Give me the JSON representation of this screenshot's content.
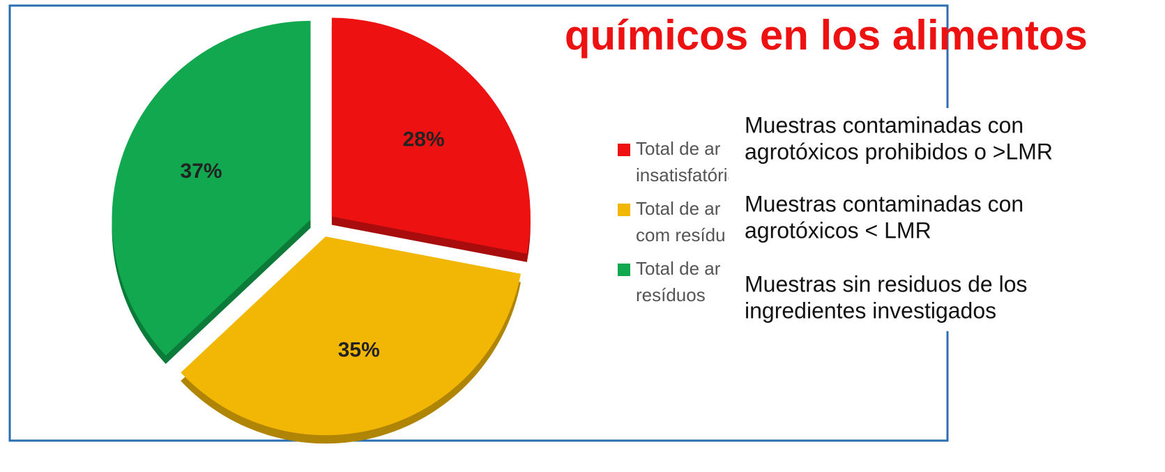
{
  "chart_data": {
    "type": "pie",
    "title": "químicos en los alimentos",
    "legend_labels": [
      [
        "Total de ar",
        "insatisfatórias"
      ],
      [
        "Total de ar",
        "com resídu"
      ],
      [
        "Total de ar",
        "resíduos"
      ]
    ],
    "categories": [
      [
        "Muestras contaminadas con",
        "agrotóxicos prohibidos o >LMR"
      ],
      [
        "Muestras contaminadas con",
        "agrotóxicos < LMR"
      ],
      [
        "Muestras sin residuos de los",
        "ingredientes investigados"
      ]
    ],
    "values": [
      28,
      35,
      37
    ],
    "value_labels": [
      "28%",
      "35%",
      "37%"
    ],
    "colors": [
      "#ee1111",
      "#f2b705",
      "#11a84f"
    ],
    "shade_colors": [
      "#a80c0c",
      "#b08404",
      "#0c7a39"
    ]
  }
}
